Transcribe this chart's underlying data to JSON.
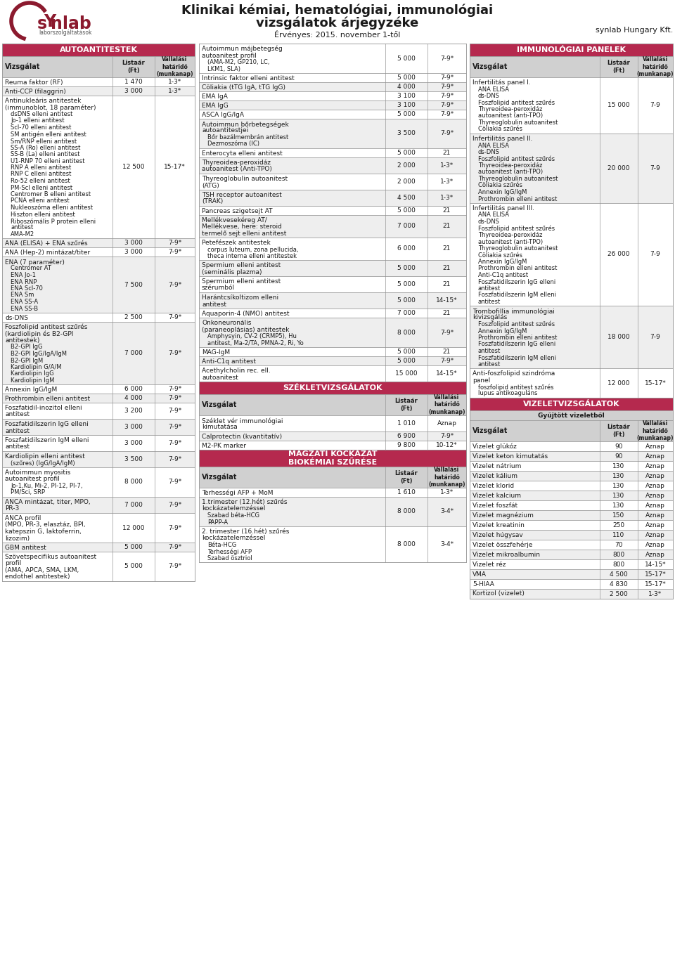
{
  "title_line1": "Klinikai kémiai, hematológiai, immunológiai",
  "title_line2": "vizsgálatok árjegyzéke",
  "subtitle": "Érvényes: 2015. november 1-től",
  "company": "synlab Hungary Kft.",
  "header_color": "#b5294e",
  "col_header_bg": "#d0d0d0",
  "row_alt_color": "#eeeeee",
  "row_white": "#ffffff",
  "text_color": "#1a1a1a",
  "autoantitestek_header": "AUTOANTITESTEK",
  "immunologiai_header": "IMMUNOLÓGIAI PANELEK",
  "szeklet_header": "SZÉKLETVIZSGÁLATOK",
  "magzati_header": "MAGZATI KOCKÁZAT\nBIOKÉMIAI SZŰRÉSE",
  "vizelet_header": "VIZELETVIZSGÁLATOK",
  "vizelet_subheader": "Gyűjtött vizeletből",
  "col_vizsgalat": "Vizsgálat",
  "col_listaar": "Listaár\n(Ft)",
  "col_vallalasi": "Vállalási\nhatáridő\n(munkanap)",
  "auto_rows": [
    {
      "name": "Reuma faktor (RF)",
      "price": "1 470",
      "days": "1-3*",
      "shade": false,
      "lines": 1
    },
    {
      "name": "Anti-CCP (filaggrin)",
      "price": "3 000",
      "days": "1-3*",
      "shade": true,
      "lines": 1
    },
    {
      "name": "Antinukleáris antitestek\n(immunoblot, 18 paraméter)\n   dsDNS elleni antitest\n   Jo-1 elleni antitest\n   Scl-70 elleni antitest\n   SM antigén elleni antitest\n   Sm/RNP elleni antitest\n   SS-A (Ro) elleni antitest\n   SS-B (La) elleni antitest\n   U1-RNP 70 elleni antitest\n   RNP A elleni antitest\n   RNP C elleni antitest\n   Ro-52 elleni antitest\n   PM-Scl elleni antitest\n   Centromer B elleni antitest\n   PCNA elleni antitest\n   Nukleoszóma elleni antitest\n   Hiszton elleni antitest\n   Riboszómális P protein elleni\n   antitest\n   AMA-M2",
      "price": "12 500",
      "days": "15-17*",
      "shade": false,
      "lines": 21
    },
    {
      "name": "ANA (ELISA) + ENA szűrés",
      "price": "3 000",
      "days": "7-9*",
      "shade": true,
      "lines": 1
    },
    {
      "name": "ANA (Hep-2) mintázat/titer",
      "price": "3 000",
      "days": "7-9*",
      "shade": false,
      "lines": 1
    },
    {
      "name": "ENA (7 paraméter)\n   Centromer AT\n   ENA Jo-1\n   ENA RNP\n   ENA Scl-70\n   ENA Sm\n   ENA SS-A\n   ENA SS-B",
      "price": "7 500",
      "days": "7-9*",
      "shade": true,
      "lines": 9
    },
    {
      "name": "ds-DNS",
      "price": "2 500",
      "days": "7-9*",
      "shade": false,
      "lines": 1
    },
    {
      "name": "Foszfolipid antitest szűrés\n(kardiolipin és B2-GPI\nantitestek)\n   B2-GPI IgG\n   B2-GPI IgG/IgA/IgM\n   B2-GPI IgM\n   Kardiolipin G/A/M\n   Kardiolipin IgG\n   Kardiolipin IgM",
      "price": "7 000",
      "days": "7-9*",
      "shade": true,
      "lines": 9
    },
    {
      "name": "Annexin IgG/IgM",
      "price": "6 000",
      "days": "7-9*",
      "shade": false,
      "lines": 1
    },
    {
      "name": "Prothrombin elleni antitest",
      "price": "4 000",
      "days": "7-9*",
      "shade": true,
      "lines": 1
    },
    {
      "name": "Foszfatidil-inozitol elleni\nantitest",
      "price": "3 200",
      "days": "7-9*",
      "shade": false,
      "lines": 2
    },
    {
      "name": "Foszfatidilszerin IgG elleni\nantitest",
      "price": "3 000",
      "days": "7-9*",
      "shade": true,
      "lines": 2
    },
    {
      "name": "Foszfatidilszerin IgM elleni\nantitest",
      "price": "3 000",
      "days": "7-9*",
      "shade": false,
      "lines": 2
    },
    {
      "name": "Kardiolipin elleni antitest\n   (szűres) (IgG/IgA/IgM)",
      "price": "3 500",
      "days": "7-9*",
      "shade": true,
      "lines": 2
    },
    {
      "name": "Autoimmun myositis\nautoanitest profil\n   Jo-1,Ku, Mi-2, PI-12, PI-7,\n   PM/Sci, SRP",
      "price": "8 000",
      "days": "7-9*",
      "shade": false,
      "lines": 4
    },
    {
      "name": "ANCA mintázat, titer, MPO,\nPR-3",
      "price": "7 000",
      "days": "7-9*",
      "shade": true,
      "lines": 2
    },
    {
      "name": "ANCA profil\n(MPO, PR-3, elasztáz, BPI,\nkatepszin G, laktoferrin,\nlizozim)",
      "price": "12 000",
      "days": "7-9*",
      "shade": false,
      "lines": 4
    },
    {
      "name": "GBM antitest",
      "price": "5 000",
      "days": "7-9*",
      "shade": true,
      "lines": 1
    },
    {
      "name": "Szövetspecifikus autoanitest\nprofil\n(AMA, APCA, SMA, LKM,\nendothel antitestek)",
      "price": "5 000",
      "days": "7-9*",
      "shade": false,
      "lines": 4
    }
  ],
  "mid_top_row": {
    "name": "Autoimmun májbetegség\nautoanitest profil\n   (AMA-M2, GP210, LC,\n   LKM1, SLA)",
    "price": "5 000",
    "days": "7-9*",
    "shade": false,
    "lines": 4
  },
  "mid_rows": [
    {
      "name": "Intrinsic faktor elleni antitest",
      "price": "5 000",
      "days": "7-9*",
      "shade": false,
      "lines": 1
    },
    {
      "name": "Cöliakia (tTG IgA, tTG IgG)",
      "price": "4 000",
      "days": "7-9*",
      "shade": true,
      "lines": 1
    },
    {
      "name": "EMA IgA",
      "price": "3 100",
      "days": "7-9*",
      "shade": false,
      "lines": 1
    },
    {
      "name": "EMA IgG",
      "price": "3 100",
      "days": "7-9*",
      "shade": true,
      "lines": 1
    },
    {
      "name": "ASCA IgG/IgA",
      "price": "5 000",
      "days": "7-9*",
      "shade": false,
      "lines": 1
    },
    {
      "name": "Autoimmun bőrbetegségek\nautoantitestjei\n   Bőr bazálmembrán antitest\n   Dezmoszóma (IC)",
      "price": "3 500",
      "days": "7-9*",
      "shade": true,
      "lines": 4
    },
    {
      "name": "Enterocyta elleni antitest",
      "price": "5 000",
      "days": "21",
      "shade": false,
      "lines": 1
    },
    {
      "name": "Thyreoidea-peroxidáz\nautoanitest (Anti-TPO)",
      "price": "2 000",
      "days": "1-3*",
      "shade": true,
      "lines": 2
    },
    {
      "name": "Thyreoglobulin autoanitest\n(ATG)",
      "price": "2 000",
      "days": "1-3*",
      "shade": false,
      "lines": 2
    },
    {
      "name": "TSH receptor autoanitest\n(TRAK)",
      "price": "4 500",
      "days": "1-3*",
      "shade": true,
      "lines": 2
    },
    {
      "name": "Pancreas szigetsejt AT",
      "price": "5 000",
      "days": "21",
      "shade": false,
      "lines": 1
    },
    {
      "name": "Mellékvesekéreg AT/\nMellékvese, here: steroid\ntermelő sejt elleni antitest",
      "price": "7 000",
      "days": "21",
      "shade": true,
      "lines": 3
    },
    {
      "name": "Petefészek antitestek\n   corpus luteum, zona pellucida,\n   theca interna elleni antitestek",
      "price": "6 000",
      "days": "21",
      "shade": false,
      "lines": 3
    },
    {
      "name": "Spermium elleni antitest\n(seminális plazma)",
      "price": "5 000",
      "days": "21",
      "shade": true,
      "lines": 2
    },
    {
      "name": "Spermium elleni antitest\nszérumból",
      "price": "5 000",
      "days": "21",
      "shade": false,
      "lines": 2
    },
    {
      "name": "Harántcsíkoltizom elleni\nantitest",
      "price": "5 000",
      "days": "14-15*",
      "shade": true,
      "lines": 2
    },
    {
      "name": "Aquaporin-4 (NMO) antitest",
      "price": "7 000",
      "days": "21",
      "shade": false,
      "lines": 1
    },
    {
      "name": "Onkoneuronális\n(paraneoplásias) antitestek\n   Amphysyin, CV-2 (CRMP5), Hu\n   antitest, Ma-2/TA, PMNA-2, Ri, Yo",
      "price": "8 000",
      "days": "7-9*",
      "shade": true,
      "lines": 4
    },
    {
      "name": "MAG-IgM",
      "price": "5 000",
      "days": "21",
      "shade": false,
      "lines": 1
    },
    {
      "name": "Anti-C1q antitest",
      "price": "5 000",
      "days": "7-9*",
      "shade": true,
      "lines": 1
    },
    {
      "name": "Acethylcholin rec. ell.\nautoanitest",
      "price": "15 000",
      "days": "14-15*",
      "shade": false,
      "lines": 2
    }
  ],
  "szeklet_rows": [
    {
      "name": "Széklet vér immunológiai\nkimutatása",
      "price": "1 010",
      "days": "Aznap",
      "shade": false,
      "lines": 2
    },
    {
      "name": "Calprotectin (kvantitatív)",
      "price": "6 900",
      "days": "7-9*",
      "shade": true,
      "lines": 1
    },
    {
      "name": "M2-PK marker",
      "price": "9 800",
      "days": "10-12*",
      "shade": false,
      "lines": 1
    }
  ],
  "magzati_rows": [
    {
      "name": "Terhességi AFP + MoM",
      "price": "1 610",
      "days": "1-3*",
      "shade": false,
      "lines": 1
    },
    {
      "name": "1.trimester (12.hét) szűrés\nkockázatelemzéssel\n   Szabad béta-HCG\n   PAPP-A",
      "price": "8 000",
      "days": "3-4*",
      "shade": true,
      "lines": 4
    },
    {
      "name": "2. trimester (16.hét) szűrés\nkockázatelemzéssel\n   Béta-HCG\n   Terhességi AFP\n   Szabad ösztriol",
      "price": "8 000",
      "days": "3-4*",
      "shade": false,
      "lines": 5
    }
  ],
  "imm_rows": [
    {
      "name": "Infertilitás panel I.\n   ANA ELISA\n   ds-DNS\n   Foszfolipid antitest szűrés\n   Thyreoidea-peroxidáz\n   autoanitest (anti-TPO)\n   Thyreoglobulin autoanitest\n   Cöliakia szűrés",
      "price": "15 000",
      "days": "7-9",
      "shade": false,
      "lines": 8
    },
    {
      "name": "Infertilitás panel II.\n   ANA ELISA\n   ds-DNS\n   Foszfolipid antitest szűrés\n   Thyreoidea-peroxidáz\n   autoanitest (anti-TPO)\n   Thyreoglobulin autoanitest\n   Cöliakia szűrés\n   Annexin IgG/IgM\n   Prothrombin elleni antitest",
      "price": "20 000",
      "days": "7-9",
      "shade": true,
      "lines": 10
    },
    {
      "name": "Infertilitás panel III.\n   ANA ELISA\n   ds-DNS\n   Foszfolipid antitest szűrés\n   Thyreoidea-peroxidáz\n   autoanitest (anti-TPO)\n   Thyreoglobulin autoanitest\n   Cöliakia szűrés\n   Annexin IgG/IgM\n   Prothrombin elleni antitest\n   Anti-C1q antitest\n   Foszfatidilszerin IgG elleni\n   antitest\n   Foszfatidilszerin IgM elleni\n   antitest",
      "price": "26 000",
      "days": "7-9",
      "shade": false,
      "lines": 15
    },
    {
      "name": "Trombofillia immunológiai\nkivizsgálás\n   Foszfolipid antitest szűrés\n   Annexin IgG/IgM\n   Prothrombin elleni antitest\n   Foszfatidilszerin IgG elleni\n   antitest\n   Foszfatidilszerin IgM elleni\n   antitest",
      "price": "18 000",
      "days": "7-9",
      "shade": true,
      "lines": 9
    },
    {
      "name": "Anti-foszfolipid szindróma\npanel\n   foszfolipid antitest szűrés\n   lupus antikoaguláns",
      "price": "12 000",
      "days": "15-17*",
      "shade": false,
      "lines": 4
    }
  ],
  "viz_rows": [
    {
      "name": "Vizelet glükóz",
      "price": "90",
      "days": "Aznap",
      "shade": false
    },
    {
      "name": "Vizelet keton kimutatás",
      "price": "90",
      "days": "Aznap",
      "shade": true
    },
    {
      "name": "Vizelet nátrium",
      "price": "130",
      "days": "Aznap",
      "shade": false
    },
    {
      "name": "Vizelet kálium",
      "price": "130",
      "days": "Aznap",
      "shade": true
    },
    {
      "name": "Vizelet klorid",
      "price": "130",
      "days": "Aznap",
      "shade": false
    },
    {
      "name": "Vizelet kalcium",
      "price": "130",
      "days": "Aznap",
      "shade": true
    },
    {
      "name": "Vizelet foszfát",
      "price": "130",
      "days": "Aznap",
      "shade": false
    },
    {
      "name": "Vizelet magnézium",
      "price": "150",
      "days": "Aznap",
      "shade": true
    },
    {
      "name": "Vizelet kreatinin",
      "price": "250",
      "days": "Aznap",
      "shade": false
    },
    {
      "name": "Vizelet húgysav",
      "price": "110",
      "days": "Aznap",
      "shade": true
    },
    {
      "name": "Vizelet összfehérje",
      "price": "70",
      "days": "Aznap",
      "shade": false
    },
    {
      "name": "Vizelet mikroalbumin",
      "price": "800",
      "days": "Aznap",
      "shade": true
    },
    {
      "name": "Vizelet réz",
      "price": "800",
      "days": "14-15*",
      "shade": false
    },
    {
      "name": "VMA",
      "price": "4 500",
      "days": "15-17*",
      "shade": true
    },
    {
      "name": "5-HIAA",
      "price": "4 830",
      "days": "15-17*",
      "shade": false
    },
    {
      "name": "Kortizol (vizelet)",
      "price": "2 500",
      "days": "1-3*",
      "shade": true
    }
  ]
}
